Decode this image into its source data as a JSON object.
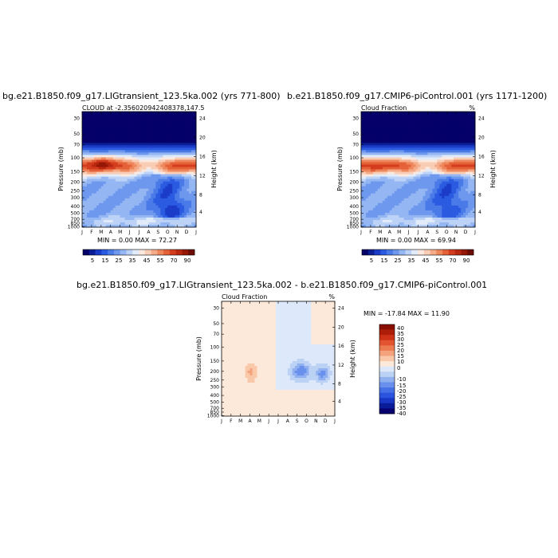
{
  "chart_data": [
    {
      "type": "heatmap",
      "title": "bg.e21.B1850.f09_g17.LIGtransient_123.5ka.002 (yrs 771-800)",
      "subtitle_left": "CLOUD at -2.356020942408378,147.5",
      "subtitle_right": "",
      "xlabel": "",
      "ylabel": "Pressure (mb)",
      "ylabel_right": "Height (km)",
      "x_ticks": [
        "J",
        "F",
        "M",
        "A",
        "M",
        "J",
        "J",
        "A",
        "S",
        "O",
        "N",
        "D",
        "J"
      ],
      "y_ticks": [
        "30",
        "50",
        "70",
        "100",
        "150",
        "200",
        "250",
        "300",
        "400",
        "500",
        "700",
        "850",
        "1000"
      ],
      "y_ticks_right": [
        "24",
        "20",
        "16",
        "12",
        "8",
        "4"
      ],
      "levels": [
        5,
        10,
        15,
        20,
        25,
        30,
        35,
        40,
        45,
        50,
        55,
        60,
        65,
        70,
        75,
        80,
        85,
        90
      ],
      "colorbar_labels": [
        "5",
        "15",
        "25",
        "35",
        "45",
        "55",
        "70",
        "90"
      ],
      "min_label": "MIN =   0.00 MAX =  72.27",
      "min": 0.0,
      "max": 72.27
    },
    {
      "type": "heatmap",
      "title": "b.e21.B1850.f09_g17.CMIP6-piControl.001 (yrs 1171-1200)",
      "subtitle_left": "Cloud Fraction",
      "subtitle_right": "%",
      "xlabel": "",
      "ylabel": "Pressure (mb)",
      "ylabel_right": "Height (km)",
      "x_ticks": [
        "J",
        "F",
        "M",
        "A",
        "M",
        "J",
        "J",
        "A",
        "S",
        "O",
        "N",
        "D",
        "J"
      ],
      "y_ticks": [
        "30",
        "50",
        "70",
        "100",
        "150",
        "200",
        "250",
        "300",
        "400",
        "500",
        "700",
        "850",
        "1000"
      ],
      "y_ticks_right": [
        "24",
        "20",
        "16",
        "12",
        "8",
        "4"
      ],
      "levels": [
        5,
        10,
        15,
        20,
        25,
        30,
        35,
        40,
        45,
        50,
        55,
        60,
        65,
        70,
        75,
        80,
        85,
        90
      ],
      "colorbar_labels": [
        "5",
        "15",
        "25",
        "35",
        "45",
        "55",
        "70",
        "90"
      ],
      "min_label": "MIN =   0.00 MAX =  69.94",
      "min": 0.0,
      "max": 69.94
    },
    {
      "type": "heatmap",
      "title": "bg.e21.B1850.f09_g17.LIGtransient_123.5ka.002 - b.e21.B1850.f09_g17.CMIP6-piControl.001",
      "subtitle_left": "Cloud Fraction",
      "subtitle_right": "%",
      "xlabel": "",
      "ylabel": "Pressure (mb)",
      "ylabel_right": "Height (km)",
      "x_ticks": [
        "J",
        "F",
        "M",
        "A",
        "M",
        "J",
        "J",
        "A",
        "S",
        "O",
        "N",
        "D",
        "J"
      ],
      "y_ticks": [
        "30",
        "50",
        "70",
        "100",
        "150",
        "200",
        "250",
        "300",
        "400",
        "500",
        "700",
        "850",
        "1000"
      ],
      "y_ticks_right": [
        "24",
        "20",
        "16",
        "12",
        "8",
        "4"
      ],
      "levels": [
        -40,
        -35,
        -30,
        -25,
        -20,
        -15,
        -10,
        -5,
        0,
        5,
        10,
        15,
        20,
        25,
        30,
        35,
        40
      ],
      "colorbar_labels": [
        "40",
        "35",
        "30",
        "25",
        "20",
        "15",
        "10",
        "0",
        "-10",
        "-15",
        "-20",
        "-25",
        "-30",
        "-35",
        "-40"
      ],
      "min_label": "MIN = -17.84 MAX =  11.90",
      "min": -17.84,
      "max": 11.9
    }
  ],
  "colors": {
    "seq": [
      "#05006a",
      "#0b1e96",
      "#1a3cc8",
      "#2b5be0",
      "#4a7ae8",
      "#6e98ee",
      "#94b6f2",
      "#bcd2f6",
      "#e2ebf9",
      "#fbe9df",
      "#f9cdb5",
      "#f5ab88",
      "#ee875c",
      "#e56138",
      "#d33d1e",
      "#b82710",
      "#951806",
      "#6e0b02"
    ],
    "div": [
      "#08006e",
      "#0b1c9a",
      "#1737c4",
      "#2b54de",
      "#4570e6",
      "#6890ec",
      "#90b0f0",
      "#bcd2f5",
      "#dde9fa",
      "#fce9da",
      "#f8c8a8",
      "#f3a27c",
      "#ec7b52",
      "#e2542f",
      "#cd3217",
      "#ad1d08",
      "#8a0d02"
    ]
  }
}
